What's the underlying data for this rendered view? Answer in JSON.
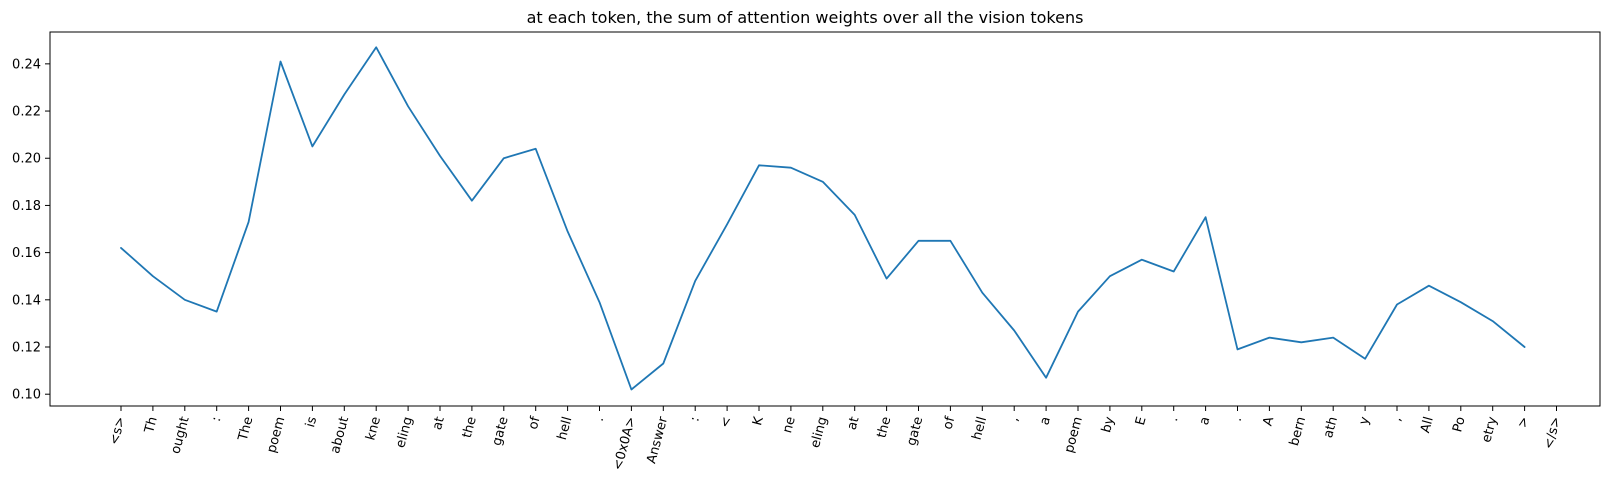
{
  "chart_data": {
    "type": "line",
    "title": "at each token, the sum of attention weights over all the vision tokens",
    "xlabel": "",
    "ylabel": "",
    "categories": [
      "<s>",
      "Th",
      "ought",
      ":",
      "The",
      "poem",
      "is",
      "about",
      "kne",
      "eling",
      "at",
      "the",
      "gate",
      "of",
      "hell",
      ".",
      "<0x0A>",
      "Answer",
      ":",
      "<",
      "K",
      "ne",
      "eling",
      "at",
      "the",
      "gate",
      "of",
      "hell",
      ",",
      "a",
      "poem",
      "by",
      "E",
      ".",
      "a",
      ".",
      "A",
      "bern",
      "ath",
      "y",
      ",",
      "All",
      "Po",
      "etry",
      ">",
      "</s>"
    ],
    "series": [
      {
        "color": "#1f77b4",
        "values": [
          0.162,
          0.15,
          0.14,
          0.135,
          0.173,
          0.241,
          0.205,
          0.227,
          0.247,
          0.222,
          0.201,
          0.182,
          0.2,
          0.204,
          0.169,
          0.139,
          0.102,
          0.113,
          0.148,
          0.172,
          0.197,
          0.196,
          0.19,
          0.176,
          0.149,
          0.165,
          0.165,
          0.143,
          0.127,
          0.107,
          0.135,
          0.15,
          0.157,
          0.152,
          0.175,
          0.119,
          0.124,
          0.122,
          0.124,
          0.115,
          0.138,
          0.146,
          0.139,
          0.131,
          0.12,
          null
        ]
      }
    ],
    "yticks": [
      0.1,
      0.12,
      0.14,
      0.16,
      0.18,
      0.2,
      0.22,
      0.24
    ],
    "ytick_labels": [
      "0.10",
      "0.12",
      "0.14",
      "0.16",
      "0.18",
      "0.20",
      "0.22",
      "0.24"
    ],
    "ylim": [
      0.095,
      0.2535
    ],
    "grid": false,
    "legend": "none"
  }
}
